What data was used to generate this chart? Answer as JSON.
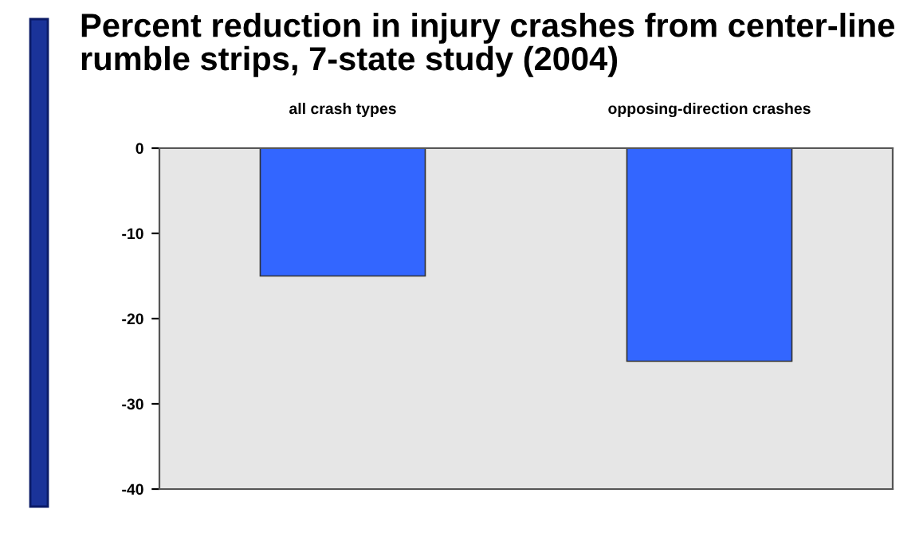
{
  "chart_data": {
    "type": "bar",
    "title": "Percent reduction in injury crashes from center-line\nrumble strips, 7-state study (2004)",
    "categories": [
      "all crash types",
      "opposing-direction crashes"
    ],
    "values": [
      -15,
      -25
    ],
    "color": "#3366ff",
    "ylim": [
      -40,
      0
    ],
    "yticks": [
      0,
      -10,
      -20,
      -30,
      -40
    ],
    "grid": false
  }
}
